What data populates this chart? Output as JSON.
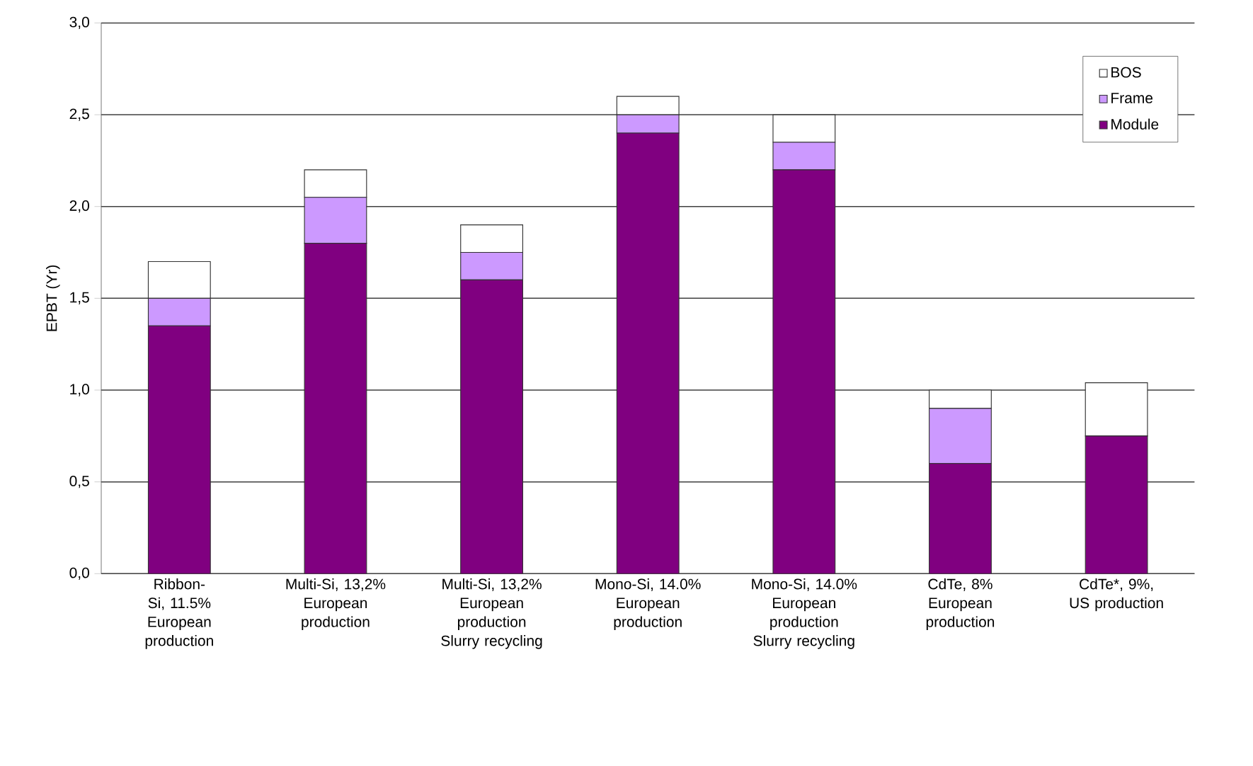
{
  "chart_data": {
    "type": "bar",
    "stacked": true,
    "ylabel": "EPBT (Yr)",
    "categories": [
      "Ribbon-Si, 11.5% European production",
      "Multi-Si, 13,2% European production",
      "Multi-Si, 13,2% European production Slurry recycling",
      "Mono-Si, 14.0% European production",
      "Mono-Si, 14.0% European production Slurry recycling",
      "CdTe, 8% European production",
      "CdTe*, 9%, US production"
    ],
    "series": [
      {
        "name": "Module",
        "color": "#800080",
        "values": [
          1.35,
          1.8,
          1.6,
          2.4,
          2.2,
          0.6,
          0.75
        ]
      },
      {
        "name": "Frame",
        "color": "#cc99ff",
        "values": [
          0.15,
          0.25,
          0.15,
          0.1,
          0.15,
          0.3,
          0
        ]
      },
      {
        "name": "BOS",
        "color": "#ffffff",
        "values": [
          0.2,
          0.15,
          0.15,
          0.1,
          0.15,
          0.1,
          0.29
        ]
      }
    ],
    "ylim": [
      0,
      3
    ],
    "yticks": [
      {
        "value": 0,
        "label": "0,0"
      },
      {
        "value": 0.5,
        "label": "0,5"
      },
      {
        "value": 1,
        "label": "1,0"
      },
      {
        "value": 1.5,
        "label": "1,5"
      },
      {
        "value": 2,
        "label": "2,0"
      },
      {
        "value": 2.5,
        "label": "2,5"
      },
      {
        "value": 3,
        "label": "3,0"
      }
    ],
    "grid": "y",
    "legend": "top right"
  }
}
